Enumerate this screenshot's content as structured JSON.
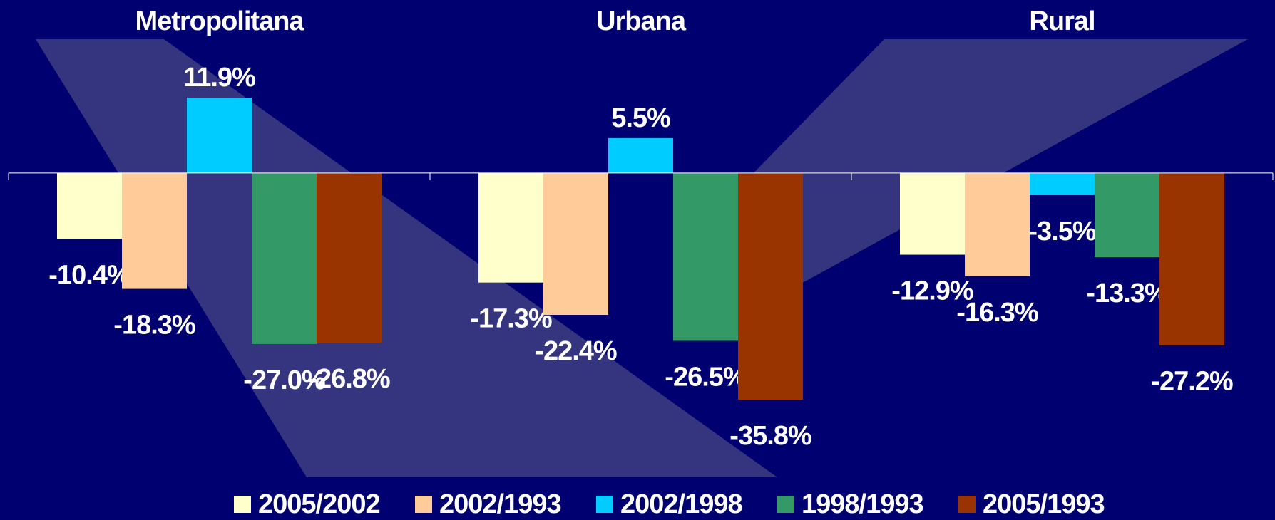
{
  "chart_data": {
    "type": "bar",
    "categories": [
      "Metropolitana",
      "Urbana",
      "Rural"
    ],
    "series": [
      {
        "name": "2005/2002",
        "color": "#ffffcc",
        "values": [
          -10.4,
          -17.3,
          -12.9
        ],
        "value_labels": [
          "-10.4%",
          "-17.3%",
          "-12.9%"
        ]
      },
      {
        "name": "2002/1993",
        "color": "#ffcc99",
        "values": [
          -18.3,
          -22.4,
          -16.3
        ],
        "value_labels": [
          "-18.3%",
          "-22.4%",
          "-16.3%"
        ]
      },
      {
        "name": "2002/1998",
        "color": "#00ccff",
        "values": [
          11.9,
          5.5,
          -3.5
        ],
        "value_labels": [
          "11.9%",
          "5.5%",
          "-3.5%"
        ]
      },
      {
        "name": "1998/1993",
        "color": "#339966",
        "values": [
          -27.0,
          -26.5,
          -13.3
        ],
        "value_labels": [
          "-27.0%",
          "-26.5%",
          "-13.3%"
        ]
      },
      {
        "name": "2005/1993",
        "color": "#993300",
        "values": [
          -26.8,
          -35.8,
          -27.2
        ],
        "value_labels": [
          "-26.8%",
          "-35.8%",
          "-27.2%"
        ]
      }
    ],
    "ylim": [
      -45,
      20
    ]
  }
}
